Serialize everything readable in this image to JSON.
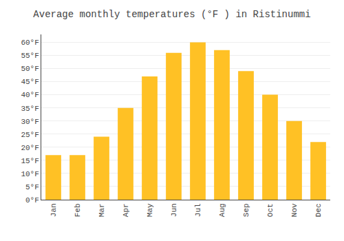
{
  "chart_data": {
    "type": "bar",
    "title": "Average monthly temperatures (°F ) in Ristinummi",
    "categories": [
      "Jan",
      "Feb",
      "Mar",
      "Apr",
      "May",
      "Jun",
      "Jul",
      "Aug",
      "Sep",
      "Oct",
      "Nov",
      "Dec"
    ],
    "values": [
      17,
      17,
      24,
      35,
      47,
      56,
      60,
      57,
      49,
      40,
      30,
      22
    ],
    "color": "#FFC125",
    "ylim": [
      0,
      63
    ],
    "yticks": [
      {
        "value": 0,
        "label": "0°F"
      },
      {
        "value": 5,
        "label": "5°F"
      },
      {
        "value": 10,
        "label": "10°F"
      },
      {
        "value": 15,
        "label": "15°F"
      },
      {
        "value": 20,
        "label": "20°F"
      },
      {
        "value": 25,
        "label": "25°F"
      },
      {
        "value": 30,
        "label": "30°F"
      },
      {
        "value": 35,
        "label": "35°F"
      },
      {
        "value": 40,
        "label": "40°F"
      },
      {
        "value": 45,
        "label": "45°F"
      },
      {
        "value": 50,
        "label": "50°F"
      },
      {
        "value": 55,
        "label": "55°F"
      },
      {
        "value": 60,
        "label": "60°F"
      }
    ],
    "grid": true
  }
}
